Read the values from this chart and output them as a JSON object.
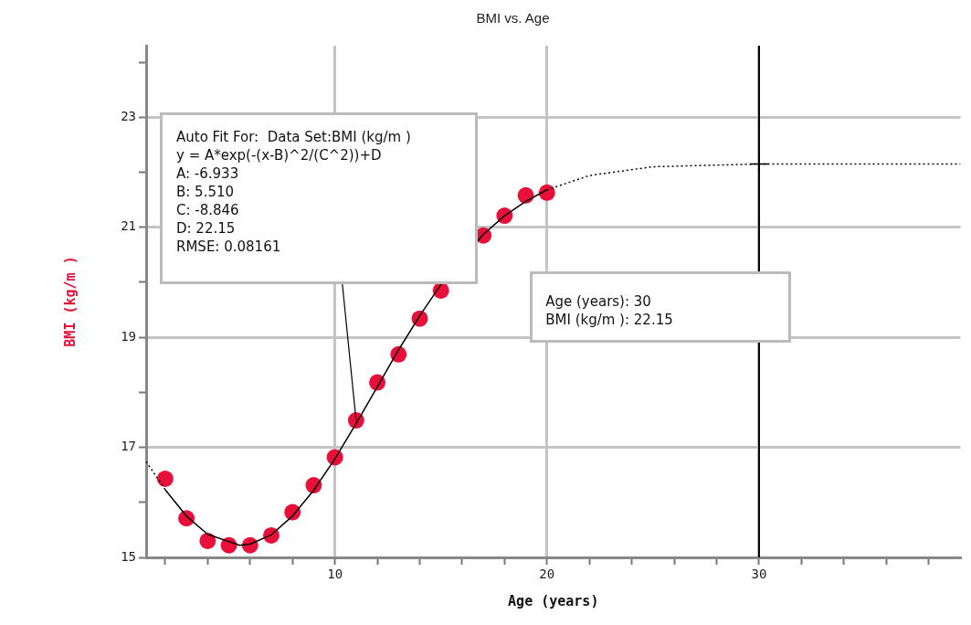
{
  "chart_data": {
    "type": "scatter",
    "title": "BMI vs. Age",
    "xlabel": "Age (years)",
    "ylabel": "BMI (kg/m )",
    "xlim": [
      1.1,
      39.5
    ],
    "ylim": [
      15,
      24.3
    ],
    "xticks": [
      {
        "value": 2,
        "label": null
      },
      {
        "value": 4,
        "label": null
      },
      {
        "value": 6,
        "label": null
      },
      {
        "value": 8,
        "label": null
      },
      10,
      {
        "value": 12,
        "label": null
      },
      {
        "value": 14,
        "label": null
      },
      {
        "value": 16,
        "label": null
      },
      {
        "value": 18,
        "label": null
      },
      20,
      {
        "value": 22,
        "label": null
      },
      {
        "value": 24,
        "label": null
      },
      {
        "value": 26,
        "label": null
      },
      {
        "value": 28,
        "label": null
      },
      30,
      {
        "value": 32,
        "label": null
      },
      {
        "value": 34,
        "label": null
      },
      {
        "value": 36,
        "label": null
      },
      {
        "value": 38,
        "label": null
      }
    ],
    "yticks": [
      15,
      {
        "value": 16,
        "label": null
      },
      17,
      {
        "value": 18,
        "label": null
      },
      19,
      {
        "value": 20,
        "label": null
      },
      21,
      {
        "value": 22,
        "label": null
      },
      23,
      {
        "value": 24,
        "label": null
      }
    ],
    "grid": true,
    "legend": false,
    "marker": "circle",
    "series": [
      {
        "color": "#e8103a",
        "x": [
          2,
          3,
          4,
          5,
          6,
          7,
          8,
          9,
          10,
          11,
          12,
          13,
          14,
          15,
          16,
          17,
          18,
          19,
          20
        ],
        "values": [
          16.43,
          15.71,
          15.3,
          15.22,
          15.22,
          15.4,
          15.82,
          16.31,
          16.82,
          17.49,
          18.18,
          18.69,
          19.34,
          19.85,
          null,
          20.85,
          21.21,
          21.58,
          21.63
        ]
      },
      {
        "type": "line",
        "color": "#000000",
        "marker": "none",
        "line_style": "dotted",
        "x": [
          1.1,
          2
        ],
        "values": [
          16.74,
          16.23
        ]
      },
      {
        "type": "line",
        "color": "#000000",
        "marker": "none",
        "line_style": "solid",
        "x": [
          2,
          3,
          4,
          5.51,
          6,
          7,
          8,
          9,
          10,
          11,
          12,
          13,
          14,
          15,
          16,
          17,
          18,
          19,
          20
        ],
        "values": [
          16.23,
          15.75,
          15.42,
          15.22,
          15.24,
          15.41,
          15.75,
          16.22,
          16.79,
          17.43,
          18.1,
          18.77,
          19.39,
          19.96,
          null,
          20.87,
          21.21,
          21.47,
          21.68
        ]
      },
      {
        "type": "line",
        "color": "#000000",
        "marker": "none",
        "line_style": "dotted",
        "x": [
          20,
          22,
          25,
          30,
          39.5
        ],
        "values": [
          21.68,
          21.94,
          22.1,
          22.15,
          22.15
        ]
      },
      {
        "color": "#000000",
        "marker": "cross",
        "x": [
          30
        ],
        "values": [
          22.15
        ]
      }
    ],
    "ref_lines": [
      {
        "axis": "x",
        "value": 30,
        "color": "#000000"
      }
    ],
    "annotations": [
      {
        "text": "Auto Fit For:  Data Set:BMI (kg/m )\ny = A*exp(-(x-B)^2/(C^2))+D\nA: -6.933\nB: 5.510\nC: -8.846\nD: 22.15\nRMSE: 0.08161",
        "x": 11,
        "y": 17.49
      },
      "Age (years): 30\nBMI (kg/m ): 22.15"
    ]
  }
}
